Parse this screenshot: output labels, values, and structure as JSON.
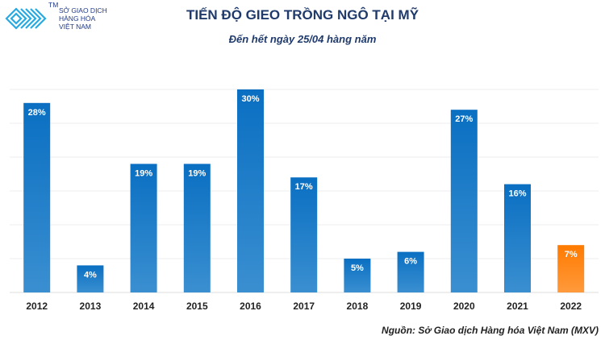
{
  "logo": {
    "lines": [
      "SỞ GIAO DỊCH",
      "HÀNG HÓA",
      "VIỆT NAM"
    ],
    "tm": "TM"
  },
  "chart_data": {
    "type": "bar",
    "title": "TIẾN ĐỘ GIEO TRỒNG NGÔ TẠI MỸ",
    "subtitle": "Đến hết ngày 25/04 hàng năm",
    "categories": [
      "2012",
      "2013",
      "2014",
      "2015",
      "2016",
      "2017",
      "2018",
      "2019",
      "2020",
      "2021",
      "2022"
    ],
    "values": [
      28,
      4,
      19,
      19,
      30,
      17,
      5,
      6,
      27,
      16,
      7
    ],
    "data_labels": [
      "28%",
      "4%",
      "19%",
      "19%",
      "30%",
      "17%",
      "5%",
      "6%",
      "27%",
      "16%",
      "7%"
    ],
    "unit": "%",
    "ylim": [
      0,
      30
    ],
    "grid": true,
    "colors": {
      "default": "#0a6fc2",
      "default_light": "#3a8fd0",
      "highlight": "#ff7a00",
      "highlight_light": "#ff9a3c"
    },
    "highlight_index": 10,
    "source": "Nguồn: Sở Giao dịch Hàng hóa Việt Nam (MXV)"
  }
}
